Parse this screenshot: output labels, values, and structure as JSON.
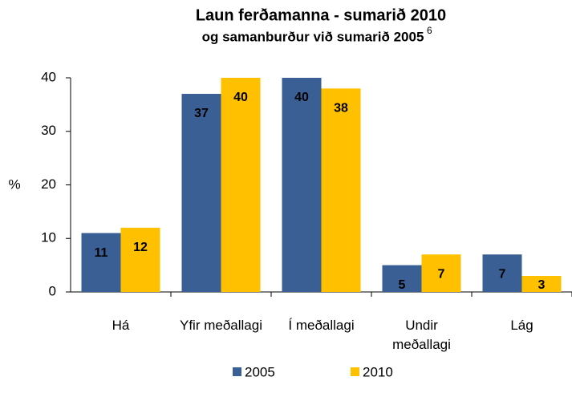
{
  "chart_data": {
    "type": "bar",
    "title": "Laun ferðamanna  - sumarið 2010",
    "subtitle": "og samanburður við sumarið 2005",
    "footnote": "6",
    "ylabel": "%",
    "categories": [
      "Há",
      "Yfir meðallagi",
      "Í meðallagi",
      "Undir meðallagi",
      "Lág"
    ],
    "series": [
      {
        "name": "2005",
        "color": "#3a5f95",
        "values": [
          11,
          37,
          40,
          5,
          7
        ]
      },
      {
        "name": "2010",
        "color": "#ffc000",
        "values": [
          12,
          40,
          38,
          7,
          3
        ]
      }
    ],
    "ylim": [
      0,
      40
    ],
    "yticks": [
      0,
      10,
      20,
      30,
      40
    ],
    "grid": false
  }
}
